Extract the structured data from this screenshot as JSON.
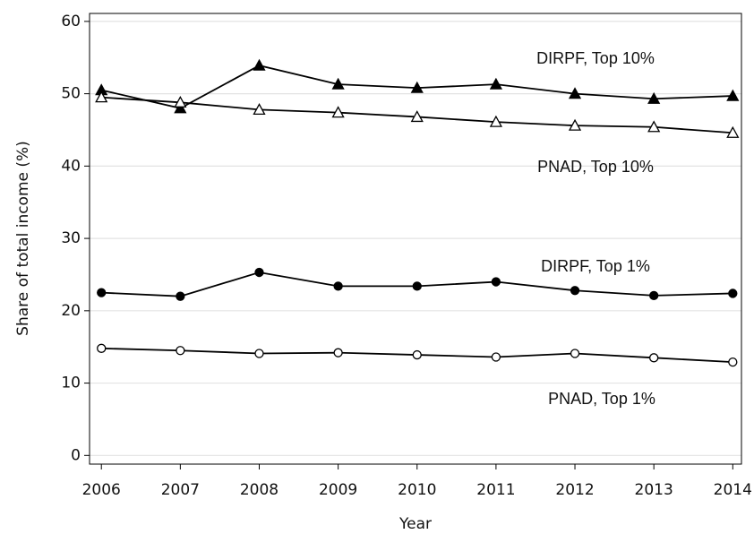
{
  "chart_data": {
    "type": "line",
    "x_label": "Year",
    "y_label": "Share of total income (%)",
    "x": [
      2006,
      2007,
      2008,
      2009,
      2010,
      2011,
      2012,
      2013,
      2014
    ],
    "xlim": [
      2005.85,
      2014.11
    ],
    "xticks": [
      2006,
      2007,
      2008,
      2009,
      2010,
      2011,
      2012,
      2013,
      2014
    ],
    "ylim": [
      -1.2,
      61.1
    ],
    "yticks": [
      0,
      10,
      20,
      30,
      40,
      50,
      60
    ],
    "grid": true,
    "series": [
      {
        "name": "DIRPF, Top 10%",
        "color": "#000000",
        "marker": "triangle",
        "filled": true,
        "values": [
          50.5,
          48.0,
          53.9,
          51.3,
          50.8,
          51.3,
          50.0,
          49.3,
          49.7
        ]
      },
      {
        "name": "PNAD, Top 10%",
        "color": "#000000",
        "marker": "triangle",
        "filled": false,
        "values": [
          49.5,
          48.8,
          47.8,
          47.4,
          46.8,
          46.1,
          45.6,
          45.4,
          44.6
        ]
      },
      {
        "name": "DIRPF, Top 1%",
        "color": "#000000",
        "marker": "circle",
        "filled": true,
        "values": [
          22.5,
          22.0,
          25.3,
          23.4,
          23.4,
          24.0,
          22.8,
          22.1,
          22.4
        ]
      },
      {
        "name": "PNAD, Top 1%",
        "color": "#000000",
        "marker": "circle",
        "filled": false,
        "values": [
          14.8,
          14.5,
          14.1,
          14.2,
          13.9,
          13.6,
          14.1,
          13.5,
          12.9
        ]
      }
    ]
  }
}
